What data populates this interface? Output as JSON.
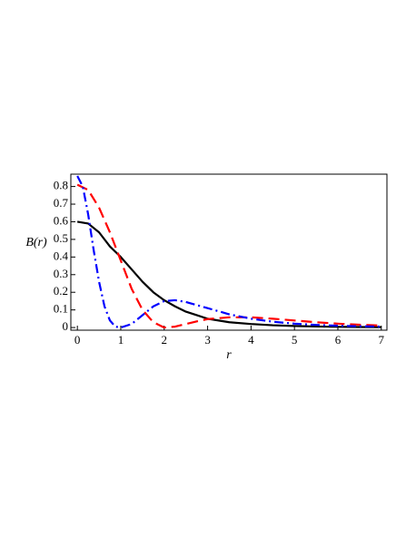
{
  "chart_data": {
    "type": "line",
    "xlabel": "r",
    "ylabel": "B(r)",
    "xlim": [
      -0.15,
      7.13
    ],
    "ylim": [
      -0.015,
      0.87
    ],
    "xticks": [
      0,
      1,
      2,
      3,
      4,
      5,
      6,
      7
    ],
    "yticks": [
      0,
      0.1,
      0.2,
      0.3,
      0.4,
      0.5,
      0.6,
      0.7,
      0.8
    ],
    "series": [
      {
        "color": "#000000",
        "style": "solid",
        "x": [
          0,
          0.25,
          0.5,
          0.75,
          1,
          1.25,
          1.5,
          1.75,
          2,
          2.25,
          2.5,
          2.75,
          3,
          3.5,
          4,
          4.5,
          5,
          5.5,
          6,
          6.5,
          7
        ],
        "values": [
          0.6,
          0.59,
          0.54,
          0.46,
          0.4,
          0.33,
          0.26,
          0.2,
          0.155,
          0.12,
          0.09,
          0.07,
          0.05,
          0.03,
          0.02,
          0.013,
          0.009,
          0.006,
          0.004,
          0.003,
          0.002
        ]
      },
      {
        "color": "#ff0000",
        "style": "dash",
        "x": [
          0,
          0.25,
          0.5,
          0.75,
          1,
          1.25,
          1.5,
          1.75,
          2,
          2.25,
          2.5,
          2.75,
          3,
          3.5,
          4,
          4.5,
          5,
          5.5,
          6,
          6.5,
          7
        ],
        "values": [
          0.81,
          0.78,
          0.68,
          0.54,
          0.38,
          0.22,
          0.1,
          0.03,
          0.0,
          0.005,
          0.02,
          0.035,
          0.048,
          0.058,
          0.058,
          0.05,
          0.04,
          0.03,
          0.022,
          0.016,
          0.011
        ]
      },
      {
        "color": "#0000ff",
        "style": "dashdot",
        "x": [
          0,
          0.125,
          0.25,
          0.375,
          0.5,
          0.625,
          0.75,
          0.875,
          1,
          1.25,
          1.5,
          1.75,
          2,
          2.25,
          2.5,
          3,
          3.5,
          4,
          4.5,
          5,
          5.5,
          6,
          7
        ],
        "values": [
          0.86,
          0.8,
          0.64,
          0.44,
          0.26,
          0.12,
          0.04,
          0.005,
          0.0,
          0.02,
          0.07,
          0.12,
          0.15,
          0.155,
          0.145,
          0.11,
          0.075,
          0.05,
          0.033,
          0.022,
          0.015,
          0.01,
          0.005
        ]
      }
    ]
  }
}
